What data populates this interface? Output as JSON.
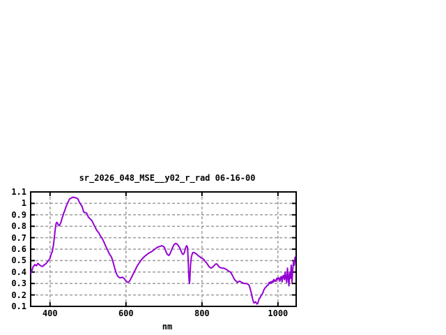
{
  "chart": {
    "title": "sr_2026_048_MSE__y02_r_rad 06-16-00",
    "xlabel": "nm"
  },
  "chart_data": {
    "type": "line",
    "title": "sr_2026_048_MSE__y02_r_rad 06-16-00",
    "xlabel": "nm",
    "ylabel": "",
    "xlim": [
      349,
      1048
    ],
    "ylim": [
      0.1,
      1.1
    ],
    "x_ticks": [
      400,
      600,
      800,
      1000
    ],
    "y_ticks": [
      "0.1",
      "0.2",
      "0.3",
      "0.4",
      "0.5",
      "0.6",
      "0.7",
      "0.8",
      "0.9",
      "1",
      "1.1"
    ],
    "grid": true,
    "legend": "none",
    "colors": {
      "line": "#9400d3",
      "grid": "#9b9b9b",
      "axis": "#000000",
      "background": "#ffffff",
      "text": "#000000"
    },
    "series": [
      {
        "name": "sr_2026_048_MSE__y02_r_rad",
        "points": [
          [
            350,
            0.39
          ],
          [
            352,
            0.41
          ],
          [
            354,
            0.43
          ],
          [
            356,
            0.45
          ],
          [
            358,
            0.455
          ],
          [
            360,
            0.465
          ],
          [
            362,
            0.46
          ],
          [
            364,
            0.455
          ],
          [
            366,
            0.465
          ],
          [
            368,
            0.475
          ],
          [
            370,
            0.47
          ],
          [
            373,
            0.46
          ],
          [
            376,
            0.455
          ],
          [
            379,
            0.45
          ],
          [
            381,
            0.45
          ],
          [
            383,
            0.455
          ],
          [
            385,
            0.465
          ],
          [
            388,
            0.47
          ],
          [
            390,
            0.475
          ],
          [
            393,
            0.49
          ],
          [
            396,
            0.5
          ],
          [
            398,
            0.51
          ],
          [
            400,
            0.52
          ],
          [
            402,
            0.545
          ],
          [
            404,
            0.565
          ],
          [
            406,
            0.58
          ],
          [
            408,
            0.62
          ],
          [
            410,
            0.66
          ],
          [
            412,
            0.72
          ],
          [
            414,
            0.78
          ],
          [
            416,
            0.825
          ],
          [
            418,
            0.835
          ],
          [
            420,
            0.825
          ],
          [
            422,
            0.81
          ],
          [
            424,
            0.805
          ],
          [
            426,
            0.815
          ],
          [
            428,
            0.83
          ],
          [
            430,
            0.85
          ],
          [
            432,
            0.875
          ],
          [
            434,
            0.89
          ],
          [
            436,
            0.915
          ],
          [
            438,
            0.93
          ],
          [
            440,
            0.95
          ],
          [
            442,
            0.97
          ],
          [
            444,
            0.985
          ],
          [
            446,
            1.0
          ],
          [
            448,
            1.015
          ],
          [
            450,
            1.03
          ],
          [
            452,
            1.04
          ],
          [
            455,
            1.045
          ],
          [
            458,
            1.05
          ],
          [
            461,
            1.055
          ],
          [
            464,
            1.05
          ],
          [
            467,
            1.05
          ],
          [
            470,
            1.045
          ],
          [
            473,
            1.04
          ],
          [
            476,
            1.02
          ],
          [
            478,
            1.005
          ],
          [
            480,
            0.995
          ],
          [
            482,
            0.985
          ],
          [
            484,
            0.975
          ],
          [
            486,
            0.955
          ],
          [
            488,
            0.93
          ],
          [
            490,
            0.92
          ],
          [
            493,
            0.92
          ],
          [
            496,
            0.915
          ],
          [
            498,
            0.905
          ],
          [
            501,
            0.88
          ],
          [
            504,
            0.87
          ],
          [
            507,
            0.86
          ],
          [
            510,
            0.85
          ],
          [
            513,
            0.83
          ],
          [
            516,
            0.81
          ],
          [
            519,
            0.79
          ],
          [
            522,
            0.77
          ],
          [
            525,
            0.755
          ],
          [
            528,
            0.745
          ],
          [
            531,
            0.725
          ],
          [
            534,
            0.71
          ],
          [
            537,
            0.695
          ],
          [
            540,
            0.675
          ],
          [
            543,
            0.655
          ],
          [
            546,
            0.63
          ],
          [
            549,
            0.61
          ],
          [
            552,
            0.59
          ],
          [
            555,
            0.565
          ],
          [
            558,
            0.55
          ],
          [
            561,
            0.535
          ],
          [
            563,
            0.52
          ],
          [
            565,
            0.5
          ],
          [
            567,
            0.475
          ],
          [
            569,
            0.45
          ],
          [
            571,
            0.425
          ],
          [
            573,
            0.405
          ],
          [
            575,
            0.385
          ],
          [
            578,
            0.365
          ],
          [
            581,
            0.355
          ],
          [
            584,
            0.35
          ],
          [
            587,
            0.35
          ],
          [
            590,
            0.355
          ],
          [
            593,
            0.35
          ],
          [
            596,
            0.34
          ],
          [
            599,
            0.325
          ],
          [
            602,
            0.315
          ],
          [
            605,
            0.31
          ],
          [
            608,
            0.315
          ],
          [
            611,
            0.33
          ],
          [
            614,
            0.35
          ],
          [
            617,
            0.37
          ],
          [
            620,
            0.39
          ],
          [
            623,
            0.41
          ],
          [
            626,
            0.43
          ],
          [
            629,
            0.45
          ],
          [
            632,
            0.465
          ],
          [
            635,
            0.48
          ],
          [
            638,
            0.495
          ],
          [
            641,
            0.51
          ],
          [
            644,
            0.52
          ],
          [
            647,
            0.53
          ],
          [
            650,
            0.54
          ],
          [
            654,
            0.55
          ],
          [
            658,
            0.56
          ],
          [
            662,
            0.57
          ],
          [
            666,
            0.575
          ],
          [
            670,
            0.585
          ],
          [
            674,
            0.595
          ],
          [
            678,
            0.605
          ],
          [
            682,
            0.615
          ],
          [
            686,
            0.62
          ],
          [
            690,
            0.625
          ],
          [
            694,
            0.63
          ],
          [
            698,
            0.625
          ],
          [
            701,
            0.615
          ],
          [
            704,
            0.59
          ],
          [
            707,
            0.565
          ],
          [
            710,
            0.55
          ],
          [
            713,
            0.545
          ],
          [
            716,
            0.56
          ],
          [
            719,
            0.585
          ],
          [
            722,
            0.61
          ],
          [
            725,
            0.63
          ],
          [
            728,
            0.645
          ],
          [
            731,
            0.65
          ],
          [
            734,
            0.645
          ],
          [
            737,
            0.635
          ],
          [
            740,
            0.62
          ],
          [
            743,
            0.6
          ],
          [
            746,
            0.575
          ],
          [
            748,
            0.56
          ],
          [
            750,
            0.555
          ],
          [
            752,
            0.56
          ],
          [
            754,
            0.575
          ],
          [
            756,
            0.6
          ],
          [
            758,
            0.62
          ],
          [
            760,
            0.63
          ],
          [
            762,
            0.615
          ],
          [
            763,
            0.55
          ],
          [
            764,
            0.48
          ],
          [
            765,
            0.4
          ],
          [
            766,
            0.33
          ],
          [
            767,
            0.3
          ],
          [
            768,
            0.33
          ],
          [
            769,
            0.4
          ],
          [
            770,
            0.47
          ],
          [
            772,
            0.53
          ],
          [
            774,
            0.555
          ],
          [
            776,
            0.57
          ],
          [
            779,
            0.57
          ],
          [
            782,
            0.565
          ],
          [
            785,
            0.56
          ],
          [
            788,
            0.55
          ],
          [
            791,
            0.54
          ],
          [
            794,
            0.535
          ],
          [
            797,
            0.525
          ],
          [
            800,
            0.52
          ],
          [
            803,
            0.515
          ],
          [
            806,
            0.505
          ],
          [
            809,
            0.49
          ],
          [
            812,
            0.48
          ],
          [
            815,
            0.465
          ],
          [
            818,
            0.45
          ],
          [
            821,
            0.44
          ],
          [
            824,
            0.435
          ],
          [
            827,
            0.44
          ],
          [
            830,
            0.45
          ],
          [
            833,
            0.46
          ],
          [
            836,
            0.47
          ],
          [
            839,
            0.47
          ],
          [
            842,
            0.46
          ],
          [
            845,
            0.445
          ],
          [
            848,
            0.44
          ],
          [
            851,
            0.435
          ],
          [
            854,
            0.435
          ],
          [
            857,
            0.435
          ],
          [
            860,
            0.43
          ],
          [
            863,
            0.425
          ],
          [
            866,
            0.42
          ],
          [
            869,
            0.41
          ],
          [
            872,
            0.405
          ],
          [
            875,
            0.4
          ],
          [
            878,
            0.385
          ],
          [
            881,
            0.365
          ],
          [
            884,
            0.345
          ],
          [
            887,
            0.33
          ],
          [
            890,
            0.32
          ],
          [
            893,
            0.31
          ],
          [
            896,
            0.315
          ],
          [
            899,
            0.32
          ],
          [
            902,
            0.315
          ],
          [
            905,
            0.31
          ],
          [
            908,
            0.305
          ],
          [
            911,
            0.3
          ],
          [
            914,
            0.3
          ],
          [
            917,
            0.3
          ],
          [
            920,
            0.295
          ],
          [
            923,
            0.29
          ],
          [
            925,
            0.275
          ],
          [
            927,
            0.255
          ],
          [
            929,
            0.23
          ],
          [
            931,
            0.2
          ],
          [
            933,
            0.17
          ],
          [
            935,
            0.145
          ],
          [
            937,
            0.13
          ],
          [
            939,
            0.135
          ],
          [
            941,
            0.14
          ],
          [
            943,
            0.13
          ],
          [
            945,
            0.12
          ],
          [
            947,
            0.125
          ],
          [
            949,
            0.15
          ],
          [
            951,
            0.17
          ],
          [
            953,
            0.175
          ],
          [
            955,
            0.19
          ],
          [
            957,
            0.2
          ],
          [
            959,
            0.21
          ],
          [
            961,
            0.225
          ],
          [
            963,
            0.245
          ],
          [
            965,
            0.255
          ],
          [
            967,
            0.265
          ],
          [
            969,
            0.27
          ],
          [
            971,
            0.28
          ],
          [
            973,
            0.285
          ],
          [
            975,
            0.29
          ],
          [
            977,
            0.31
          ],
          [
            979,
            0.3
          ],
          [
            981,
            0.315
          ],
          [
            983,
            0.305
          ],
          [
            985,
            0.32
          ],
          [
            987,
            0.31
          ],
          [
            989,
            0.335
          ],
          [
            991,
            0.32
          ],
          [
            993,
            0.33
          ],
          [
            995,
            0.32
          ],
          [
            997,
            0.345
          ],
          [
            999,
            0.335
          ],
          [
            1001,
            0.35
          ],
          [
            1003,
            0.345
          ],
          [
            1005,
            0.32
          ],
          [
            1007,
            0.355
          ],
          [
            1009,
            0.36
          ],
          [
            1011,
            0.315
          ],
          [
            1013,
            0.365
          ],
          [
            1015,
            0.37
          ],
          [
            1017,
            0.335
          ],
          [
            1019,
            0.4
          ],
          [
            1021,
            0.345
          ],
          [
            1023,
            0.31
          ],
          [
            1025,
            0.435
          ],
          [
            1027,
            0.35
          ],
          [
            1029,
            0.28
          ],
          [
            1031,
            0.4
          ],
          [
            1033,
            0.345
          ],
          [
            1035,
            0.46
          ],
          [
            1037,
            0.31
          ],
          [
            1039,
            0.42
          ],
          [
            1041,
            0.5
          ],
          [
            1043,
            0.46
          ],
          [
            1045,
            0.53
          ]
        ]
      }
    ]
  }
}
